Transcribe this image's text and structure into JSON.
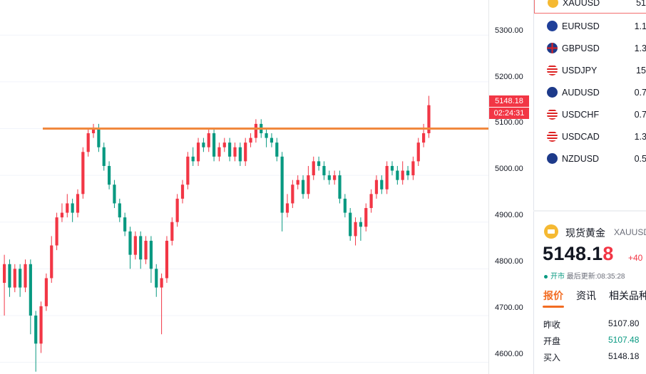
{
  "chart_data": {
    "type": "candlestick",
    "instrument": "XAUUSD",
    "ylim": [
      4575,
      5375
    ],
    "y_ticks": [
      "5300.00",
      "5200.00",
      "5100.00",
      "5000.00",
      "4900.00",
      "4800.00",
      "4700.00",
      "4600.00"
    ],
    "horizontal_line": 5100,
    "last_price": "5148.18",
    "countdown": "02:24:31",
    "line_ref_label": "5100.00",
    "candles": [
      [
        4770,
        4810,
        4700,
        4830
      ],
      [
        4810,
        4760,
        4740,
        4820
      ],
      [
        4760,
        4800,
        4750,
        4810
      ],
      [
        4800,
        4760,
        4740,
        4810
      ],
      [
        4760,
        4810,
        4750,
        4820
      ],
      [
        4810,
        4700,
        4660,
        4820
      ],
      [
        4700,
        4640,
        4580,
        4710
      ],
      [
        4640,
        4720,
        4620,
        4730
      ],
      [
        4720,
        4780,
        4710,
        4790
      ],
      [
        4780,
        4850,
        4770,
        4870
      ],
      [
        4850,
        4910,
        4840,
        4920
      ],
      [
        4910,
        4920,
        4900,
        4940
      ],
      [
        4920,
        4940,
        4910,
        4960
      ],
      [
        4940,
        4920,
        4900,
        4950
      ],
      [
        4920,
        4960,
        4910,
        4970
      ],
      [
        4960,
        5050,
        4950,
        5060
      ],
      [
        5050,
        5090,
        5040,
        5100
      ],
      [
        5090,
        5100,
        5080,
        5110
      ],
      [
        5100,
        5060,
        5050,
        5110
      ],
      [
        5060,
        5020,
        5010,
        5070
      ],
      [
        5020,
        4980,
        4970,
        5030
      ],
      [
        4980,
        4940,
        4930,
        4990
      ],
      [
        4940,
        4910,
        4900,
        4950
      ],
      [
        4910,
        4880,
        4870,
        4920
      ],
      [
        4880,
        4830,
        4800,
        4890
      ],
      [
        4830,
        4870,
        4820,
        4880
      ],
      [
        4870,
        4820,
        4800,
        4880
      ],
      [
        4820,
        4860,
        4810,
        4870
      ],
      [
        4860,
        4800,
        4770,
        4870
      ],
      [
        4800,
        4760,
        4740,
        4810
      ],
      [
        4760,
        4780,
        4660,
        4790
      ],
      [
        4780,
        4860,
        4770,
        4870
      ],
      [
        4860,
        4900,
        4850,
        4910
      ],
      [
        4900,
        4950,
        4890,
        4960
      ],
      [
        4950,
        4980,
        4940,
        4990
      ],
      [
        4980,
        5040,
        4970,
        5050
      ],
      [
        5040,
        5030,
        5020,
        5060
      ],
      [
        5030,
        5070,
        5020,
        5080
      ],
      [
        5070,
        5060,
        5050,
        5080
      ],
      [
        5060,
        5090,
        5050,
        5100
      ],
      [
        5090,
        5040,
        5030,
        5100
      ],
      [
        5040,
        5060,
        5030,
        5070
      ],
      [
        5060,
        5070,
        5050,
        5080
      ],
      [
        5070,
        5040,
        5030,
        5080
      ],
      [
        5040,
        5060,
        5030,
        5070
      ],
      [
        5060,
        5030,
        5020,
        5070
      ],
      [
        5030,
        5070,
        5020,
        5080
      ],
      [
        5070,
        5080,
        5060,
        5090
      ],
      [
        5080,
        5110,
        5070,
        5120
      ],
      [
        5110,
        5090,
        5080,
        5120
      ],
      [
        5090,
        5080,
        5060,
        5100
      ],
      [
        5080,
        5070,
        5060,
        5090
      ],
      [
        5070,
        5040,
        5030,
        5080
      ],
      [
        5040,
        4920,
        4880,
        5050
      ],
      [
        4920,
        4940,
        4910,
        4960
      ],
      [
        4940,
        4980,
        4930,
        4990
      ],
      [
        4980,
        4990,
        4970,
        5000
      ],
      [
        4990,
        4960,
        4950,
        5000
      ],
      [
        4960,
        5000,
        4950,
        5020
      ],
      [
        5000,
        5030,
        4990,
        5040
      ],
      [
        5030,
        5020,
        5010,
        5040
      ],
      [
        5020,
        5000,
        4990,
        5030
      ],
      [
        5000,
        4990,
        4980,
        5010
      ],
      [
        4990,
        5000,
        4980,
        5010
      ],
      [
        5000,
        4950,
        4940,
        5010
      ],
      [
        4950,
        4920,
        4910,
        4960
      ],
      [
        4920,
        4870,
        4860,
        4930
      ],
      [
        4870,
        4900,
        4850,
        4910
      ],
      [
        4900,
        4890,
        4860,
        4910
      ],
      [
        4890,
        4930,
        4880,
        4940
      ],
      [
        4930,
        4960,
        4920,
        4970
      ],
      [
        4960,
        4990,
        4950,
        5000
      ],
      [
        4990,
        4970,
        4960,
        5000
      ],
      [
        4970,
        5020,
        4960,
        5030
      ],
      [
        5020,
        5010,
        5000,
        5030
      ],
      [
        5010,
        4990,
        4980,
        5020
      ],
      [
        4990,
        5010,
        4980,
        5030
      ],
      [
        5010,
        5000,
        4990,
        5020
      ],
      [
        5000,
        5030,
        4990,
        5040
      ],
      [
        5030,
        5070,
        5020,
        5080
      ],
      [
        5070,
        5090,
        5060,
        5110
      ],
      [
        5090,
        5150,
        5080,
        5170
      ]
    ]
  },
  "watchlist": [
    {
      "symbol": "XAUUSD",
      "value": "51",
      "flag": "gold",
      "active": true
    },
    {
      "symbol": "EURUSD",
      "value": "1.1",
      "flag": "eu"
    },
    {
      "symbol": "GBPUSD",
      "value": "1.3",
      "flag": "gb"
    },
    {
      "symbol": "USDJPY",
      "value": "15",
      "flag": "us"
    },
    {
      "symbol": "AUDUSD",
      "value": "0.7",
      "flag": "au"
    },
    {
      "symbol": "USDCHF",
      "value": "0.7",
      "flag": "us"
    },
    {
      "symbol": "USDCAD",
      "value": "1.3",
      "flag": "us"
    },
    {
      "symbol": "NZDUSD",
      "value": "0.5",
      "flag": "nz"
    }
  ],
  "detail": {
    "name": "现货黄金",
    "code": "XAUUSD",
    "price_main": "5148.1",
    "price_last": "8",
    "change": "+40",
    "status_open": "开市",
    "status_updated": "最后更新:08:35:28",
    "tabs": [
      "报价",
      "资讯",
      "相关品种"
    ],
    "quotes": [
      {
        "label": "昨收",
        "value": "5107.80",
        "color": "#131722"
      },
      {
        "label": "开盘",
        "value": "5107.48",
        "color": "#089981"
      },
      {
        "label": "买入",
        "value": "5148.18",
        "color": "#131722"
      }
    ]
  },
  "colors": {
    "up": "#f23645",
    "down": "#089981",
    "hline": "#f0883e",
    "accent": "#f26c22"
  }
}
